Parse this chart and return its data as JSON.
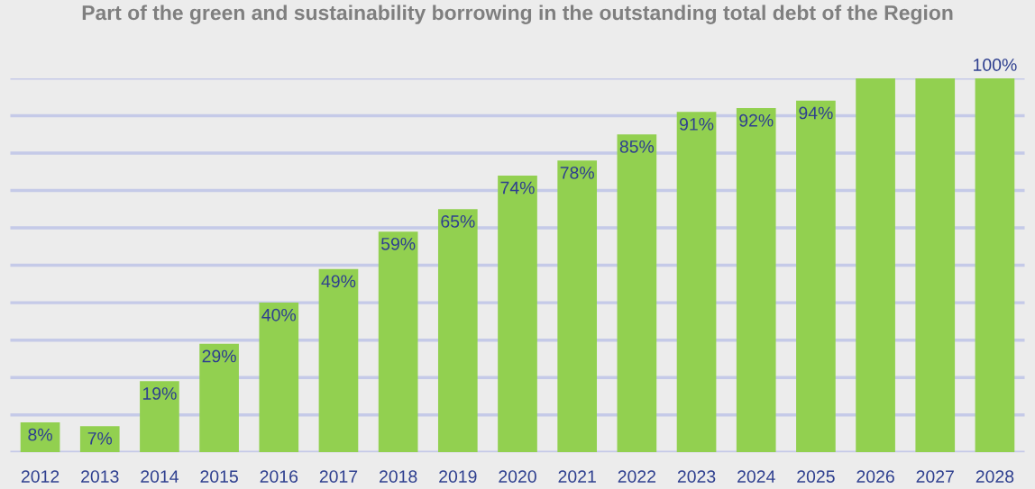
{
  "chart_data": {
    "type": "bar",
    "title": "Part of the green and sustainability borrowing in the outstanding total debt of the Region",
    "categories": [
      "2012",
      "2013",
      "2014",
      "2015",
      "2016",
      "2017",
      "2018",
      "2019",
      "2020",
      "2021",
      "2022",
      "2023",
      "2024",
      "2025",
      "2026",
      "2027",
      "2028"
    ],
    "values": [
      8,
      7,
      19,
      29,
      40,
      49,
      59,
      65,
      74,
      78,
      85,
      91,
      92,
      94,
      100,
      100,
      100
    ],
    "value_labels": [
      "8%",
      "7%",
      "19%",
      "29%",
      "40%",
      "49%",
      "59%",
      "65%",
      "74%",
      "78%",
      "85%",
      "91%",
      "92%",
      "94%",
      null,
      null,
      "100%"
    ],
    "color": "#92d050",
    "ylim": [
      0,
      100
    ],
    "yticks": [
      {
        "value": 10,
        "label": null
      },
      {
        "value": 20,
        "label": null
      },
      {
        "value": 30,
        "label": null
      },
      {
        "value": 40,
        "label": null
      },
      {
        "value": 50,
        "label": null
      },
      {
        "value": 60,
        "label": null
      },
      {
        "value": 70,
        "label": null
      },
      {
        "value": 80,
        "label": null
      },
      {
        "value": 90,
        "label": null
      },
      {
        "value": 100,
        "label": null
      }
    ],
    "grid": "y",
    "tick_labels": "x"
  }
}
